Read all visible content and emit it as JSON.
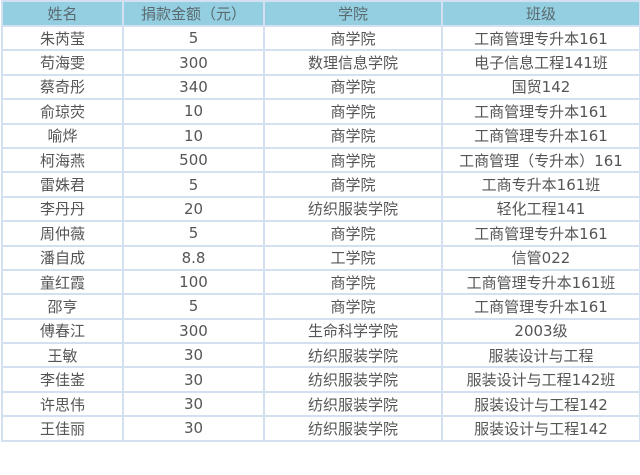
{
  "headers": [
    "姓名",
    "捐款金额（元）",
    "学院",
    "班级"
  ],
  "rows": [
    [
      "朱芮莹",
      "5",
      "商学院",
      "工商管理专升本161"
    ],
    [
      "苟海雯",
      "300",
      "数理信息学院",
      "电子信息工程141班"
    ],
    [
      "蔡奇彤",
      "340",
      "商学院",
      "国贸142"
    ],
    [
      "俞琼荧",
      "10",
      "商学院",
      "工商管理专升本161"
    ],
    [
      "喻烨",
      "10",
      "商学院",
      "工商管理专升本161"
    ],
    [
      "柯海燕",
      "500",
      "商学院",
      "工商管理（专升本）161"
    ],
    [
      "雷姝君",
      "5",
      "商学院",
      "工商专升本161班"
    ],
    [
      "李丹丹",
      "20",
      "纺织服装学院",
      "轻化工程141"
    ],
    [
      "周仲薇",
      "5",
      "商学院",
      "工商管理专升本161"
    ],
    [
      "潘自成",
      "8.8",
      "工学院",
      "信管022"
    ],
    [
      "童红霞",
      "100",
      "商学院",
      "工商管理专升本161班"
    ],
    [
      "邵亨",
      "5",
      "商学院",
      "工商管理专升本161"
    ],
    [
      "傅春江",
      "300",
      "生命科学学院",
      "2003级"
    ],
    [
      "王敏",
      "30",
      "纺织服装学院",
      "服装设计与工程"
    ],
    [
      "李佳崟",
      "30",
      "纺织服装学院",
      "服装设计与工程142班"
    ],
    [
      "许思伟",
      "30",
      "纺织服装学院",
      "服装设计与工程142"
    ],
    [
      "王佳丽",
      "30",
      "纺织服装学院",
      "服装设计与工程142"
    ]
  ]
}
